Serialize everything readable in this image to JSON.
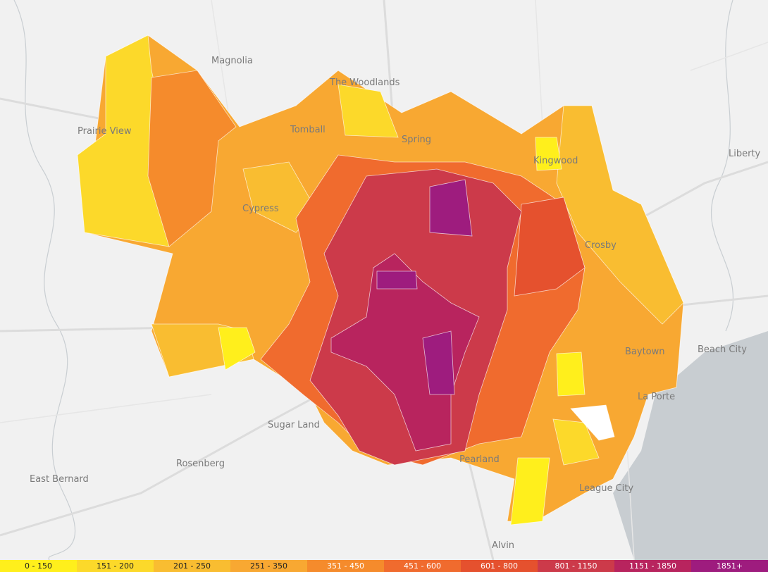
{
  "map": {
    "cities": [
      {
        "label": "Magnolia"
      },
      {
        "label": "The Woodlands"
      },
      {
        "label": "Prairie View"
      },
      {
        "label": "Tomball"
      },
      {
        "label": "Spring"
      },
      {
        "label": "Kingwood"
      },
      {
        "label": "Liberty"
      },
      {
        "label": "Cypress"
      },
      {
        "label": "Crosby"
      },
      {
        "label": "Baytown"
      },
      {
        "label": "Beach City"
      },
      {
        "label": "La Porte"
      },
      {
        "label": "Sugar Land"
      },
      {
        "label": "Rosenberg"
      },
      {
        "label": "East Bernard"
      },
      {
        "label": "Pearland"
      },
      {
        "label": "League City"
      },
      {
        "label": "Alvin"
      }
    ],
    "legend": [
      {
        "label": "0 - 150",
        "color": "#ffef1c",
        "text_color": "#222222"
      },
      {
        "label": "151 - 200",
        "color": "#fcd92a",
        "text_color": "#222222"
      },
      {
        "label": "201 - 250",
        "color": "#f9bd31",
        "text_color": "#222222"
      },
      {
        "label": "251 - 350",
        "color": "#f8a832",
        "text_color": "#222222"
      },
      {
        "label": "351 - 450",
        "color": "#f58b2c",
        "text_color": "#ffffff"
      },
      {
        "label": "451 - 600",
        "color": "#f06b2e",
        "text_color": "#ffffff"
      },
      {
        "label": "601 - 800",
        "color": "#e5512e",
        "text_color": "#ffffff"
      },
      {
        "label": "801 - 1150",
        "color": "#cc3a4a",
        "text_color": "#ffffff"
      },
      {
        "label": "1151 - 1850",
        "color": "#b8245e",
        "text_color": "#ffffff"
      },
      {
        "label": "1851+",
        "color": "#9e1c7e",
        "text_color": "#ffffff"
      }
    ]
  }
}
